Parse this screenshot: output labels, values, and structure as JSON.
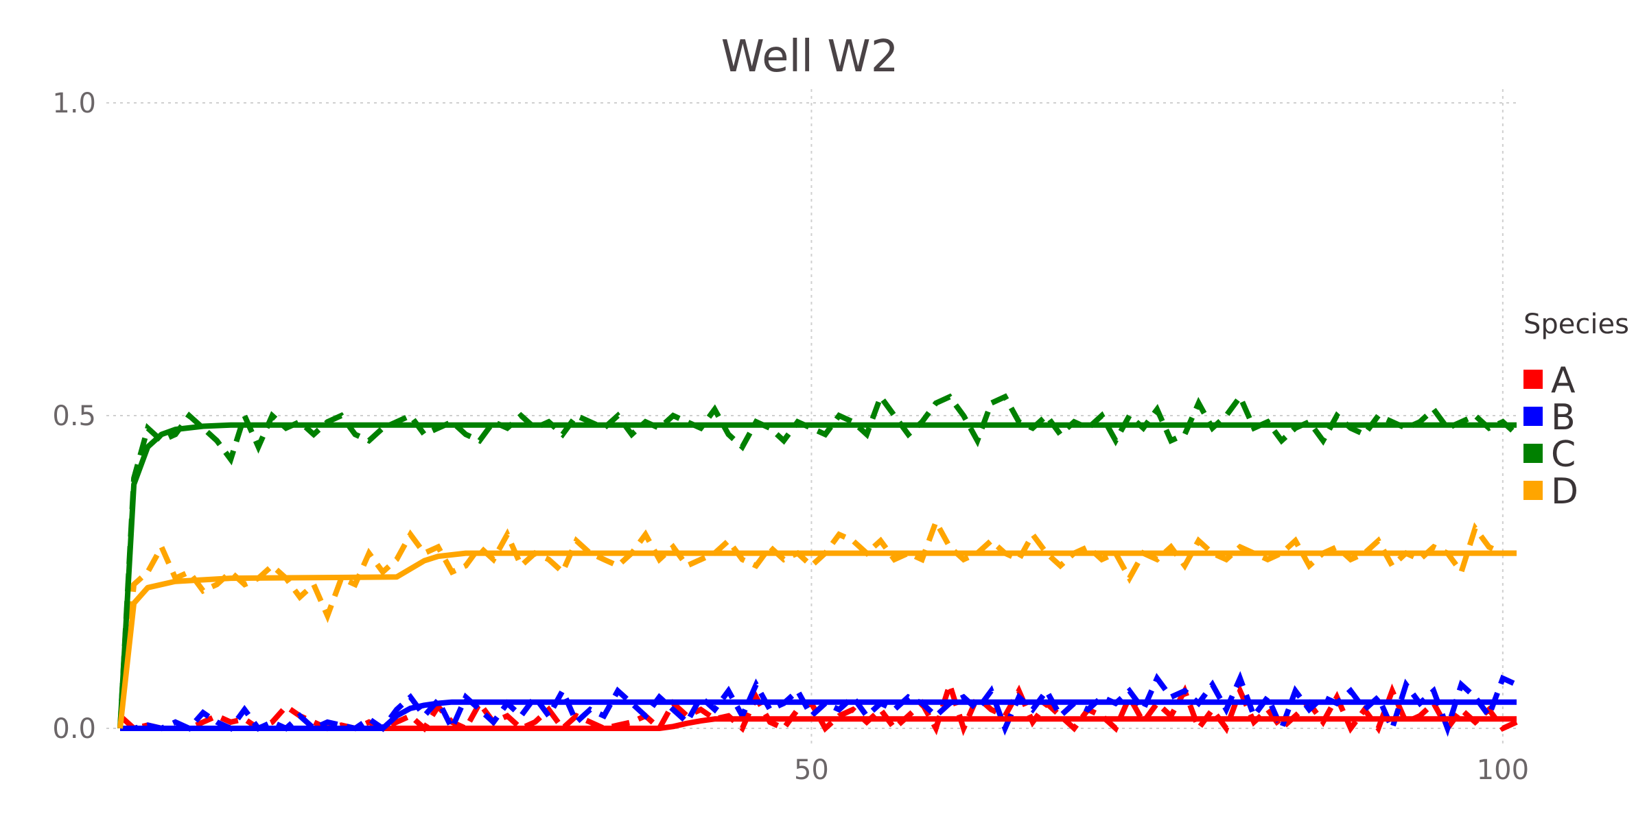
{
  "chart_data": {
    "type": "line",
    "title": "Well W2",
    "xlabel": "",
    "ylabel": "",
    "xlim": [
      0,
      101
    ],
    "ylim": [
      0,
      1
    ],
    "x_ticks": [
      50,
      100
    ],
    "y_ticks": [
      0.0,
      0.5,
      1.0
    ],
    "y_tick_labels": [
      "0.0",
      "0.5",
      "1.0"
    ],
    "grid": true,
    "legend": {
      "title": "Species",
      "placement": "right"
    },
    "series": [
      {
        "name": "A",
        "color": "#ff0000",
        "fitted": {
          "x": [
            0,
            39,
            40,
            41,
            42,
            43,
            101
          ],
          "y": [
            0,
            0,
            0.003,
            0.008,
            0.012,
            0.015,
            0.015
          ]
        },
        "observed": {
          "x": [
            0,
            1,
            2,
            3,
            4,
            5,
            6,
            7,
            8,
            9,
            10,
            11,
            12,
            13,
            14,
            15,
            16,
            17,
            18,
            19,
            20,
            21,
            22,
            23,
            24,
            25,
            26,
            27,
            28,
            29,
            30,
            31,
            32,
            33,
            34,
            35,
            36,
            37,
            38,
            39,
            40,
            41,
            42,
            43,
            44,
            45,
            46,
            47,
            48,
            49,
            50,
            51,
            52,
            53,
            54,
            55,
            56,
            57,
            58,
            59,
            60,
            61,
            62,
            63,
            64,
            65,
            66,
            67,
            68,
            69,
            70,
            71,
            72,
            73,
            74,
            75,
            76,
            77,
            78,
            79,
            80,
            81,
            82,
            83,
            84,
            85,
            86,
            87,
            88,
            89,
            90,
            91,
            92,
            93,
            94,
            95,
            96,
            97,
            98,
            99,
            100,
            101
          ],
          "y": [
            0.02,
            0,
            0.005,
            0,
            0,
            0,
            0.01,
            0.02,
            0.01,
            0.015,
            0,
            0.01,
            0.035,
            0.02,
            0.01,
            0,
            0.005,
            0,
            0.01,
            0,
            0.01,
            0.02,
            0,
            0.035,
            0.01,
            0,
            0.04,
            0.01,
            0.02,
            0,
            0.01,
            0.03,
            0,
            0.02,
            0.01,
            0,
            0.005,
            0.01,
            0.02,
            0,
            0.04,
            0.02,
            0.03,
            0.015,
            0.02,
            0,
            0.05,
            0.01,
            0,
            0.03,
            0.04,
            0,
            0.02,
            0.03,
            0.01,
            0.03,
            0,
            0.02,
            0.04,
            0,
            0.07,
            0,
            0.05,
            0.03,
            0.02,
            0.06,
            0.01,
            0.04,
            0.02,
            0,
            0.03,
            0.02,
            0,
            0.05,
            0.01,
            0.04,
            0.02,
            0.06,
            0,
            0.03,
            0,
            0.06,
            0.01,
            0.03,
            0,
            0.02,
            0.04,
            0.01,
            0.05,
            0,
            0.03,
            0,
            0.06,
            0.01,
            0.02,
            0.04,
            0,
            0.03,
            0.01,
            0.03,
            0,
            0.01
          ]
        }
      },
      {
        "name": "B",
        "color": "#0000ff",
        "fitted": {
          "x": [
            0,
            19,
            20,
            21,
            22,
            23,
            24,
            101
          ],
          "y": [
            0,
            0,
            0.02,
            0.032,
            0.037,
            0.04,
            0.042,
            0.042
          ]
        },
        "observed": {
          "x": [
            0,
            1,
            2,
            3,
            4,
            5,
            6,
            7,
            8,
            9,
            10,
            11,
            12,
            13,
            14,
            15,
            16,
            17,
            18,
            19,
            20,
            21,
            22,
            23,
            24,
            25,
            26,
            27,
            28,
            29,
            30,
            31,
            32,
            33,
            34,
            35,
            36,
            37,
            38,
            39,
            40,
            41,
            42,
            43,
            44,
            45,
            46,
            47,
            48,
            49,
            50,
            51,
            52,
            53,
            54,
            55,
            56,
            57,
            58,
            59,
            60,
            61,
            62,
            63,
            64,
            65,
            66,
            67,
            68,
            69,
            70,
            71,
            72,
            73,
            74,
            75,
            76,
            77,
            78,
            79,
            80,
            81,
            82,
            83,
            84,
            85,
            86,
            87,
            88,
            89,
            90,
            91,
            92,
            93,
            94,
            95,
            96,
            97,
            98,
            99,
            100,
            101
          ],
          "y": [
            0,
            0,
            0.005,
            0,
            0.01,
            0,
            0.025,
            0.01,
            0,
            0.03,
            0,
            0.01,
            0,
            0.02,
            0,
            0.01,
            0.005,
            0,
            0.015,
            0,
            0.03,
            0.05,
            0.02,
            0.045,
            0,
            0.05,
            0.03,
            0.01,
            0.04,
            0.02,
            0.05,
            0.02,
            0.06,
            0.01,
            0.03,
            0.02,
            0.06,
            0.04,
            0.02,
            0.05,
            0.03,
            0.01,
            0.05,
            0.03,
            0.06,
            0.02,
            0.07,
            0.03,
            0.04,
            0.06,
            0.02,
            0.04,
            0.03,
            0.05,
            0.02,
            0.04,
            0.03,
            0.05,
            0.04,
            0.02,
            0.04,
            0.05,
            0.03,
            0.06,
            0,
            0.05,
            0.03,
            0.06,
            0.02,
            0.04,
            0.03,
            0.05,
            0.04,
            0.06,
            0.03,
            0.08,
            0.05,
            0.06,
            0.04,
            0.07,
            0.03,
            0.08,
            0.02,
            0.05,
            0,
            0.06,
            0.03,
            0.05,
            0.04,
            0.06,
            0.03,
            0.05,
            0,
            0.07,
            0.04,
            0.06,
            0,
            0.07,
            0.05,
            0.02,
            0.08,
            0.07
          ]
        }
      },
      {
        "name": "C",
        "color": "#008000",
        "fitted": {
          "x": [
            0,
            1,
            2,
            3,
            4,
            6,
            8,
            101
          ],
          "y": [
            0,
            0.39,
            0.45,
            0.47,
            0.478,
            0.483,
            0.485,
            0.485
          ]
        },
        "observed": {
          "x": [
            0,
            1,
            2,
            3,
            4,
            5,
            6,
            7,
            8,
            9,
            10,
            11,
            12,
            13,
            14,
            15,
            16,
            17,
            18,
            19,
            20,
            21,
            22,
            23,
            24,
            25,
            26,
            27,
            28,
            29,
            30,
            31,
            32,
            33,
            34,
            35,
            36,
            37,
            38,
            39,
            40,
            41,
            42,
            43,
            44,
            45,
            46,
            47,
            48,
            49,
            50,
            51,
            52,
            53,
            54,
            55,
            56,
            57,
            58,
            59,
            60,
            61,
            62,
            63,
            64,
            65,
            66,
            67,
            68,
            69,
            70,
            71,
            72,
            73,
            74,
            75,
            76,
            77,
            78,
            79,
            80,
            81,
            82,
            83,
            84,
            85,
            86,
            87,
            88,
            89,
            90,
            91,
            92,
            93,
            94,
            95,
            96,
            97,
            98,
            99,
            100,
            101
          ],
          "y": [
            0,
            0.4,
            0.48,
            0.46,
            0.47,
            0.5,
            0.48,
            0.46,
            0.43,
            0.5,
            0.45,
            0.5,
            0.48,
            0.49,
            0.47,
            0.49,
            0.5,
            0.47,
            0.46,
            0.48,
            0.49,
            0.5,
            0.47,
            0.48,
            0.49,
            0.47,
            0.46,
            0.49,
            0.48,
            0.5,
            0.48,
            0.49,
            0.47,
            0.5,
            0.49,
            0.48,
            0.5,
            0.47,
            0.49,
            0.48,
            0.5,
            0.49,
            0.48,
            0.51,
            0.47,
            0.45,
            0.49,
            0.48,
            0.46,
            0.49,
            0.48,
            0.47,
            0.5,
            0.49,
            0.47,
            0.53,
            0.5,
            0.47,
            0.49,
            0.52,
            0.53,
            0.5,
            0.46,
            0.52,
            0.53,
            0.49,
            0.48,
            0.5,
            0.47,
            0.49,
            0.48,
            0.5,
            0.46,
            0.5,
            0.48,
            0.51,
            0.46,
            0.47,
            0.52,
            0.48,
            0.5,
            0.53,
            0.48,
            0.49,
            0.46,
            0.48,
            0.49,
            0.46,
            0.5,
            0.48,
            0.47,
            0.5,
            0.49,
            0.48,
            0.49,
            0.51,
            0.48,
            0.49,
            0.5,
            0.48,
            0.49,
            0.47
          ]
        }
      },
      {
        "name": "D",
        "color": "#ffa500",
        "fitted": {
          "x": [
            0,
            1,
            2,
            4,
            8,
            20,
            21,
            22,
            23,
            25,
            101
          ],
          "y": [
            0,
            0.2,
            0.225,
            0.235,
            0.24,
            0.242,
            0.255,
            0.268,
            0.275,
            0.28,
            0.28
          ]
        },
        "observed": {
          "x": [
            0,
            1,
            2,
            3,
            4,
            5,
            6,
            7,
            8,
            9,
            10,
            11,
            12,
            13,
            14,
            15,
            16,
            17,
            18,
            19,
            20,
            21,
            22,
            23,
            24,
            25,
            26,
            27,
            28,
            29,
            30,
            31,
            32,
            33,
            34,
            35,
            36,
            37,
            38,
            39,
            40,
            41,
            42,
            43,
            44,
            45,
            46,
            47,
            48,
            49,
            50,
            51,
            52,
            53,
            54,
            55,
            56,
            57,
            58,
            59,
            60,
            61,
            62,
            63,
            64,
            65,
            66,
            67,
            68,
            69,
            70,
            71,
            72,
            73,
            74,
            75,
            76,
            77,
            78,
            79,
            80,
            81,
            82,
            83,
            84,
            85,
            86,
            87,
            88,
            89,
            90,
            91,
            92,
            93,
            94,
            95,
            96,
            97,
            98,
            99,
            100,
            101
          ],
          "y": [
            0,
            0.23,
            0.25,
            0.29,
            0.24,
            0.25,
            0.22,
            0.23,
            0.25,
            0.23,
            0.24,
            0.26,
            0.24,
            0.21,
            0.23,
            0.18,
            0.24,
            0.23,
            0.28,
            0.25,
            0.27,
            0.31,
            0.28,
            0.29,
            0.25,
            0.26,
            0.29,
            0.27,
            0.31,
            0.26,
            0.28,
            0.27,
            0.25,
            0.3,
            0.28,
            0.27,
            0.26,
            0.28,
            0.31,
            0.27,
            0.29,
            0.26,
            0.27,
            0.28,
            0.3,
            0.27,
            0.26,
            0.29,
            0.27,
            0.28,
            0.26,
            0.28,
            0.31,
            0.3,
            0.28,
            0.3,
            0.27,
            0.28,
            0.27,
            0.33,
            0.29,
            0.27,
            0.28,
            0.3,
            0.28,
            0.27,
            0.31,
            0.28,
            0.26,
            0.28,
            0.29,
            0.27,
            0.28,
            0.24,
            0.28,
            0.27,
            0.29,
            0.26,
            0.3,
            0.28,
            0.27,
            0.29,
            0.28,
            0.27,
            0.28,
            0.3,
            0.26,
            0.28,
            0.29,
            0.27,
            0.28,
            0.3,
            0.26,
            0.28,
            0.27,
            0.29,
            0.28,
            0.25,
            0.32,
            0.29,
            0.28,
            0.28
          ]
        }
      }
    ]
  }
}
